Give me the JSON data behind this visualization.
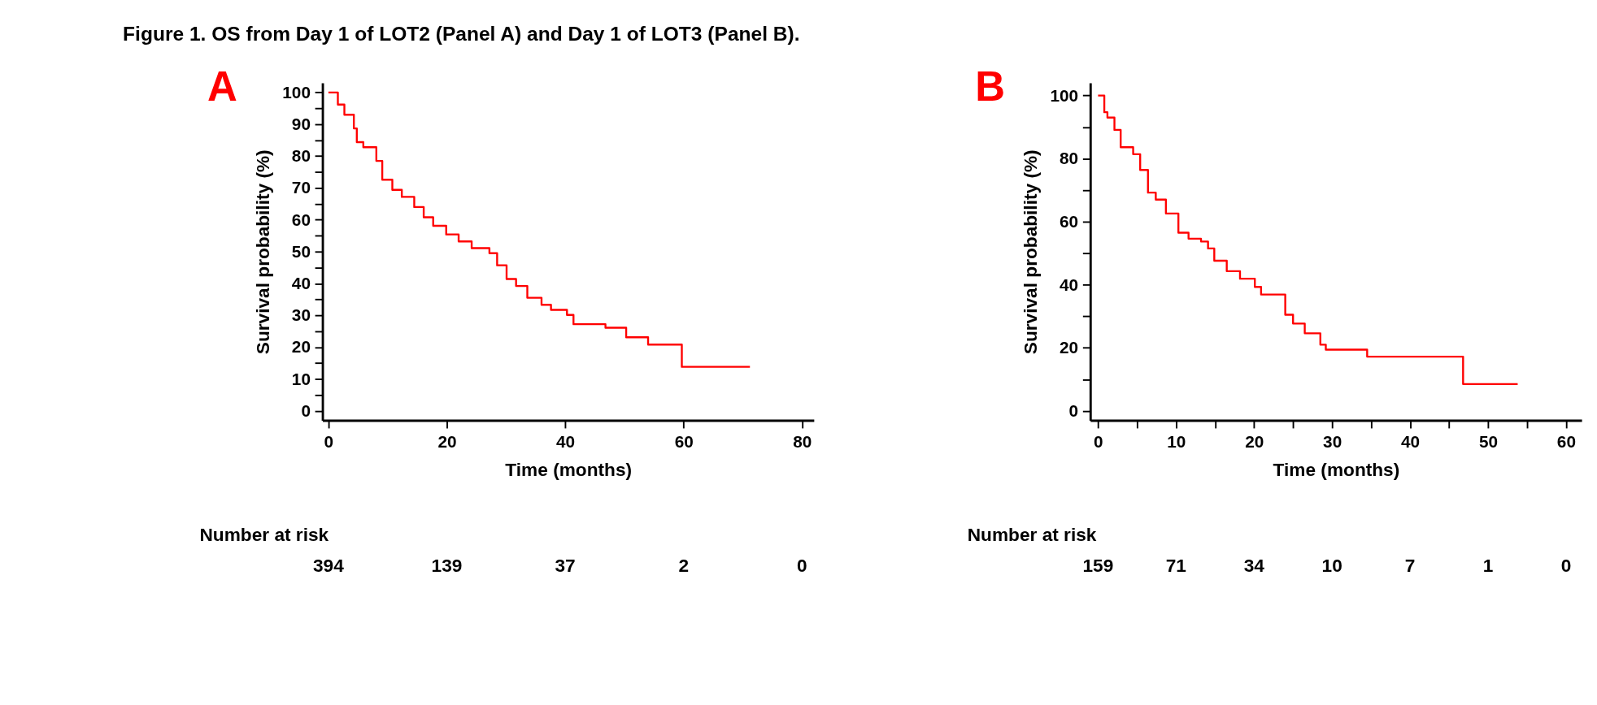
{
  "chart_data": [
    {
      "type": "step",
      "title": "Figure 1. OS from Day 1 of LOT2 (Panel A) and Day 1 of LOT3 (Panel B).",
      "xlabel": "Time (months)",
      "ylabel": "Survival probability (%)",
      "series": [
        {
          "color": "#ff0000",
          "x": [
            0,
            1.6,
            2.7,
            4.3,
            4.8,
            5.9,
            8.1,
            9.1,
            10.8,
            12.4,
            14.5,
            16.1,
            17.7,
            19.9,
            22,
            24.2,
            27.2,
            28.5,
            30.1,
            31.7,
            33.6,
            36,
            37.6,
            40.3,
            41.4,
            46.8,
            50.3,
            54,
            59.7,
            71.2
          ],
          "values": [
            100,
            96.2,
            93,
            88.7,
            84.4,
            82.8,
            78.5,
            72.6,
            69.4,
            67.2,
            64,
            60.8,
            58.1,
            55.4,
            53.2,
            51.1,
            49.5,
            45.7,
            41.4,
            39.2,
            35.5,
            33.3,
            31.7,
            30.1,
            27.2,
            26.1,
            23.1,
            20.8,
            13.8,
            13.8
          ]
        }
      ],
      "xlim": [
        -1,
        82
      ],
      "ylim": [
        -3,
        103
      ],
      "xticks": [
        0,
        20,
        40,
        60,
        80
      ],
      "yticks": [
        0,
        {
          "value": 5,
          "label": null
        },
        10,
        {
          "value": 15,
          "label": null
        },
        20,
        {
          "value": 25,
          "label": null
        },
        30,
        {
          "value": 35,
          "label": null
        },
        40,
        {
          "value": 45,
          "label": null
        },
        50,
        {
          "value": 55,
          "label": null
        },
        60,
        {
          "value": 65,
          "label": null
        },
        70,
        {
          "value": 75,
          "label": null
        },
        80,
        {
          "value": 85,
          "label": null
        },
        90,
        {
          "value": 95,
          "label": null
        },
        100
      ],
      "grid": false,
      "marker": "none",
      "line_style": "solid",
      "annotations": [
        "A",
        "Number at risk",
        "394",
        "139",
        "37",
        "2",
        "0"
      ]
    },
    {
      "type": "step",
      "xlabel": "Time (months)",
      "ylabel": "Survival probability (%)",
      "series": [
        {
          "color": "#ff0000",
          "x": [
            0,
            0.8,
            1.2,
            2.1,
            2.9,
            4.5,
            5.4,
            6.4,
            7.4,
            8.7,
            10.3,
            11.6,
            13.2,
            14.1,
            14.9,
            16.5,
            18.2,
            20.1,
            20.9,
            22.9,
            24,
            25,
            26.5,
            28.5,
            29.2,
            34.5,
            46.8,
            53.8
          ],
          "values": [
            100,
            94.7,
            93,
            89.1,
            83.6,
            81.4,
            76.4,
            69.2,
            67,
            62.6,
            56.5,
            54.6,
            53.7,
            51.5,
            47.6,
            44.3,
            41.9,
            39.3,
            36.9,
            36.9,
            30.5,
            27.7,
            24.6,
            21,
            19.4,
            17.2,
            8.5,
            8.5
          ]
        }
      ],
      "xlim": [
        -1,
        62
      ],
      "ylim": [
        -3,
        104
      ],
      "xticks": [
        0,
        {
          "value": 5,
          "label": null
        },
        10,
        {
          "value": 15,
          "label": null
        },
        20,
        {
          "value": 25,
          "label": null
        },
        30,
        {
          "value": 35,
          "label": null
        },
        40,
        {
          "value": 45,
          "label": null
        },
        50,
        {
          "value": 55,
          "label": null
        },
        60
      ],
      "yticks": [
        0,
        {
          "value": 10,
          "label": null
        },
        20,
        {
          "value": 30,
          "label": null
        },
        40,
        {
          "value": 50,
          "label": null
        },
        60,
        {
          "value": 70,
          "label": null
        },
        80,
        {
          "value": 90,
          "label": null
        },
        100
      ],
      "grid": false,
      "marker": "none",
      "line_style": "solid",
      "annotations": [
        "B",
        "Number at risk",
        "159",
        "71",
        "34",
        "10",
        "7",
        "1",
        "0"
      ]
    }
  ]
}
